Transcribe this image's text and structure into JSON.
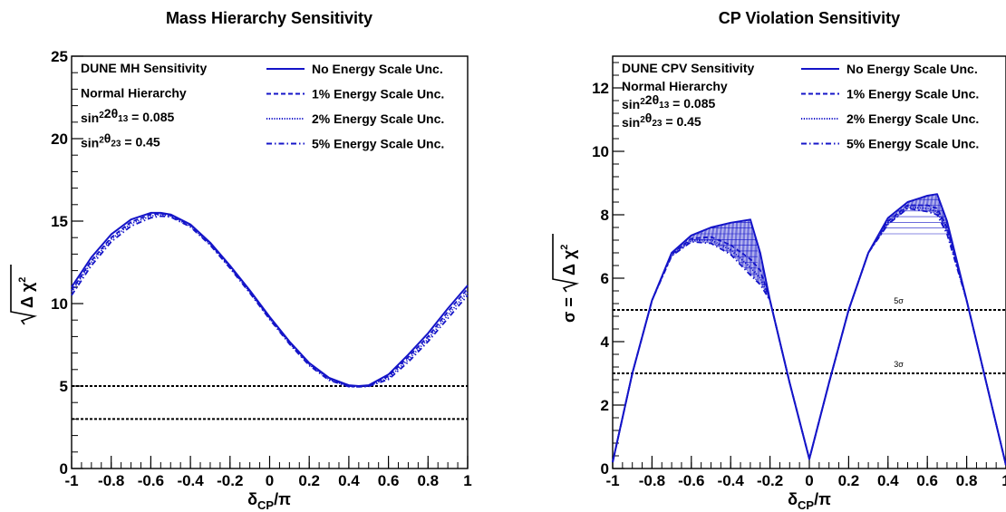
{
  "chart_data": [
    {
      "type": "line",
      "title": "Mass Hierarchy Sensitivity",
      "xlabel": "δ_CP/π",
      "ylabel": "√Δχ²",
      "xlim": [
        -1,
        1
      ],
      "ylim": [
        0,
        25
      ],
      "x_ticks": [
        "-1",
        "-0.8",
        "-0.6",
        "-0.4",
        "-0.2",
        "0",
        "0.2",
        "0.4",
        "0.6",
        "0.8",
        "1"
      ],
      "y_ticks": [
        "0",
        "5",
        "10",
        "15",
        "20",
        "25"
      ],
      "legend_placement": "top-right",
      "info_lines": [
        "DUNE MH Sensitivity",
        "Normal Hierarchy",
        "sin²2θ₁₃ = 0.085",
        "sin²θ₂₃ = 0.45"
      ],
      "series": [
        {
          "name": "No Energy Scale Unc.",
          "style": "solid",
          "x": [
            -1,
            -0.9,
            -0.8,
            -0.7,
            -0.6,
            -0.55,
            -0.5,
            -0.4,
            -0.3,
            -0.2,
            -0.1,
            0,
            0.1,
            0.2,
            0.3,
            0.4,
            0.45,
            0.5,
            0.6,
            0.7,
            0.8,
            0.9,
            1
          ],
          "values": [
            11.0,
            12.8,
            14.2,
            15.1,
            15.5,
            15.5,
            15.4,
            14.8,
            13.7,
            12.3,
            10.8,
            9.2,
            7.7,
            6.4,
            5.5,
            5.05,
            5.0,
            5.05,
            5.7,
            6.9,
            8.2,
            9.7,
            11.1
          ]
        },
        {
          "name": "1% Energy Scale Unc.",
          "style": "dashed",
          "x": [
            -1,
            -0.9,
            -0.8,
            -0.7,
            -0.6,
            -0.55,
            -0.5,
            -0.4,
            -0.3,
            -0.2,
            -0.1,
            0,
            0.1,
            0.2,
            0.3,
            0.4,
            0.45,
            0.5,
            0.6,
            0.7,
            0.8,
            0.9,
            1
          ],
          "values": [
            10.8,
            12.6,
            14.0,
            14.95,
            15.4,
            15.45,
            15.35,
            14.75,
            13.65,
            12.25,
            10.75,
            9.15,
            7.65,
            6.35,
            5.45,
            5.0,
            4.98,
            5.02,
            5.6,
            6.75,
            8.0,
            9.5,
            10.9
          ]
        },
        {
          "name": "2% Energy Scale Unc.",
          "style": "dotted",
          "x": [
            -1,
            -0.9,
            -0.8,
            -0.7,
            -0.6,
            -0.55,
            -0.5,
            -0.4,
            -0.3,
            -0.2,
            -0.1,
            0,
            0.1,
            0.2,
            0.3,
            0.4,
            0.45,
            0.5,
            0.6,
            0.7,
            0.8,
            0.9,
            1
          ],
          "values": [
            10.7,
            12.5,
            13.9,
            14.85,
            15.3,
            15.4,
            15.3,
            14.7,
            13.6,
            12.2,
            10.7,
            9.1,
            7.6,
            6.3,
            5.4,
            4.98,
            4.96,
            5.0,
            5.5,
            6.6,
            7.85,
            9.3,
            10.7
          ]
        },
        {
          "name": "5% Energy Scale Unc.",
          "style": "dashdot",
          "x": [
            -1,
            -0.9,
            -0.8,
            -0.7,
            -0.6,
            -0.55,
            -0.5,
            -0.4,
            -0.3,
            -0.2,
            -0.1,
            0,
            0.1,
            0.2,
            0.3,
            0.4,
            0.45,
            0.5,
            0.6,
            0.7,
            0.8,
            0.9,
            1
          ],
          "values": [
            10.5,
            12.3,
            13.75,
            14.7,
            15.2,
            15.3,
            15.25,
            14.65,
            13.55,
            12.15,
            10.65,
            9.05,
            7.55,
            6.25,
            5.35,
            4.96,
            4.95,
            4.98,
            5.4,
            6.45,
            7.7,
            9.1,
            10.5
          ]
        }
      ],
      "reference_lines": [
        {
          "y": 5,
          "label": ""
        },
        {
          "y": 3,
          "label": ""
        }
      ]
    },
    {
      "type": "line",
      "title": "CP Violation Sensitivity",
      "xlabel": "δ_CP/π",
      "ylabel": "σ = √Δχ²",
      "xlim": [
        -1,
        1
      ],
      "ylim": [
        0,
        13
      ],
      "x_ticks": [
        "-1",
        "-0.8",
        "-0.6",
        "-0.4",
        "-0.2",
        "0",
        "0.2",
        "0.4",
        "0.6",
        "0.8",
        "1"
      ],
      "y_ticks": [
        "0",
        "2",
        "4",
        "6",
        "8",
        "10",
        "12"
      ],
      "legend_placement": "top-right",
      "info_lines": [
        "DUNE CPV Sensitivity",
        "Normal Hierarchy",
        "sin²2θ₁₃ = 0.085",
        "sin²θ₂₃ = 0.45"
      ],
      "series": [
        {
          "name": "No Energy Scale Unc.",
          "style": "solid",
          "x": [
            -1,
            -0.9,
            -0.8,
            -0.7,
            -0.6,
            -0.5,
            -0.4,
            -0.3,
            -0.25,
            -0.2,
            -0.1,
            0,
            0.1,
            0.2,
            0.3,
            0.4,
            0.5,
            0.6,
            0.65,
            0.7,
            0.8,
            0.9,
            1
          ],
          "values": [
            0.2,
            3.0,
            5.3,
            6.8,
            7.35,
            7.6,
            7.75,
            7.85,
            6.8,
            5.3,
            2.7,
            0.3,
            2.7,
            5.0,
            6.8,
            7.9,
            8.4,
            8.6,
            8.65,
            7.8,
            5.3,
            2.7,
            0.1
          ]
        },
        {
          "name": "1% Energy Scale Unc.",
          "style": "dashed",
          "x": [
            -1,
            -0.9,
            -0.8,
            -0.7,
            -0.6,
            -0.5,
            -0.4,
            -0.3,
            -0.25,
            -0.2,
            -0.1,
            0,
            0.1,
            0.2,
            0.3,
            0.4,
            0.5,
            0.6,
            0.65,
            0.7,
            0.8,
            0.9,
            1
          ],
          "values": [
            0.2,
            3.0,
            5.3,
            6.75,
            7.25,
            7.3,
            7.05,
            6.6,
            6.25,
            5.3,
            2.7,
            0.3,
            2.7,
            5.0,
            6.8,
            7.8,
            8.3,
            8.3,
            8.2,
            7.6,
            5.3,
            2.7,
            0.1
          ]
        },
        {
          "name": "2% Energy Scale Unc.",
          "style": "dotted",
          "x": [
            -1,
            -0.9,
            -0.8,
            -0.7,
            -0.6,
            -0.5,
            -0.4,
            -0.3,
            -0.25,
            -0.2,
            -0.1,
            0,
            0.1,
            0.2,
            0.3,
            0.4,
            0.5,
            0.6,
            0.65,
            0.7,
            0.8,
            0.9,
            1
          ],
          "values": [
            0.2,
            3.0,
            5.3,
            6.75,
            7.2,
            7.2,
            6.9,
            6.35,
            6.0,
            5.3,
            2.7,
            0.3,
            2.7,
            5.0,
            6.8,
            7.75,
            8.25,
            8.2,
            8.1,
            7.5,
            5.3,
            2.7,
            0.1
          ]
        },
        {
          "name": "5% Energy Scale Unc.",
          "style": "dashdot",
          "x": [
            -1,
            -0.9,
            -0.8,
            -0.7,
            -0.6,
            -0.5,
            -0.4,
            -0.3,
            -0.25,
            -0.2,
            -0.1,
            0,
            0.1,
            0.2,
            0.3,
            0.4,
            0.5,
            0.6,
            0.65,
            0.7,
            0.8,
            0.9,
            1
          ],
          "values": [
            0.2,
            3.0,
            5.3,
            6.7,
            7.15,
            7.1,
            6.75,
            6.1,
            5.8,
            5.3,
            2.7,
            0.3,
            2.7,
            5.0,
            6.8,
            7.7,
            8.2,
            8.1,
            8.0,
            7.4,
            5.3,
            2.7,
            0.1
          ]
        }
      ],
      "reference_lines": [
        {
          "y": 5,
          "label": "5σ"
        },
        {
          "y": 3,
          "label": "3σ"
        }
      ]
    }
  ],
  "colors": {
    "line": "#1414c8",
    "hatch": "#1414c8",
    "reference": "#000000"
  }
}
